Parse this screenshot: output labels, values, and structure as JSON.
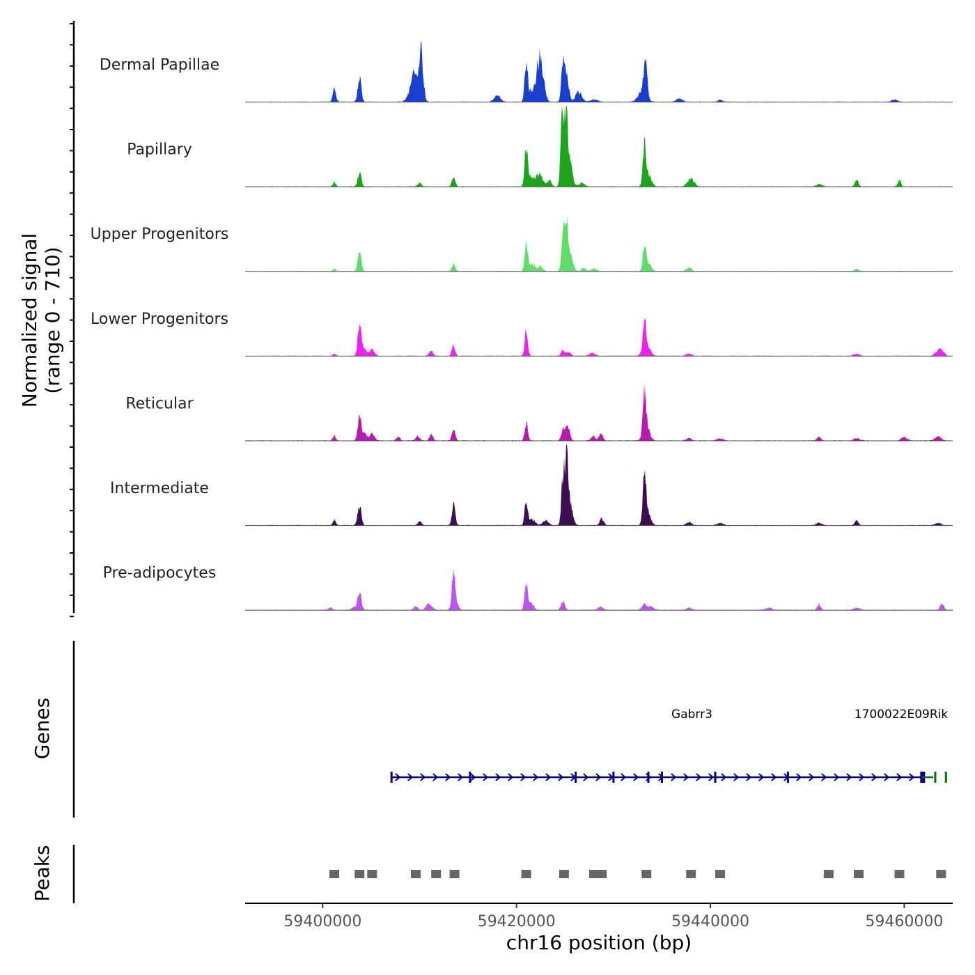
{
  "chart_data": {
    "type": "area",
    "title": "",
    "chromosome": "chr16",
    "xlabel": "chr16 position (bp)",
    "xlim": [
      59392000,
      59465000
    ],
    "xticks": [
      59400000,
      59420000,
      59440000,
      59460000
    ],
    "xtick_labels": [
      "59400000",
      "59420000",
      "59440000",
      "59460000"
    ],
    "ylabel": "Normalized signal",
    "ylabel_range": "(range 0 - 710)",
    "ylim": [
      0,
      710
    ],
    "series": [
      {
        "name": "Dermal Papillae",
        "color": "#1a3fcf",
        "peaks": [
          [
            59401200,
            110,
            160
          ],
          [
            59403800,
            200,
            180
          ],
          [
            59409600,
            200,
            350
          ],
          [
            59410200,
            380,
            200
          ],
          [
            59409200,
            80,
            400
          ],
          [
            59418000,
            60,
            300
          ],
          [
            59421000,
            330,
            160
          ],
          [
            59421600,
            100,
            300
          ],
          [
            59422300,
            310,
            250
          ],
          [
            59422700,
            200,
            250
          ],
          [
            59424800,
            370,
            160
          ],
          [
            59425200,
            250,
            200
          ],
          [
            59426400,
            100,
            300
          ],
          [
            59428000,
            20,
            400
          ],
          [
            59433300,
            340,
            160
          ],
          [
            59433000,
            100,
            400
          ],
          [
            59436800,
            30,
            300
          ],
          [
            59441000,
            20,
            200
          ],
          [
            59459000,
            20,
            300
          ]
        ]
      },
      {
        "name": "Papillary",
        "color": "#1ca51c",
        "peaks": [
          [
            59401200,
            40,
            150
          ],
          [
            59403800,
            120,
            180
          ],
          [
            59410000,
            30,
            200
          ],
          [
            59413500,
            80,
            170
          ],
          [
            59421000,
            320,
            160
          ],
          [
            59421500,
            80,
            300
          ],
          [
            59422200,
            80,
            250
          ],
          [
            59422600,
            60,
            250
          ],
          [
            59423400,
            60,
            200
          ],
          [
            59424700,
            620,
            160
          ],
          [
            59425100,
            700,
            180
          ],
          [
            59425500,
            220,
            250
          ],
          [
            59426700,
            30,
            300
          ],
          [
            59433200,
            340,
            160
          ],
          [
            59433600,
            100,
            300
          ],
          [
            59437800,
            50,
            250
          ],
          [
            59438200,
            40,
            250
          ],
          [
            59451200,
            20,
            300
          ],
          [
            59455100,
            60,
            170
          ],
          [
            59459500,
            60,
            160
          ]
        ]
      },
      {
        "name": "Upper Progenitors",
        "color": "#5fdc6a",
        "peaks": [
          [
            59401200,
            20,
            150
          ],
          [
            59403800,
            160,
            180
          ],
          [
            59413500,
            60,
            170
          ],
          [
            59421000,
            230,
            160
          ],
          [
            59421600,
            60,
            300
          ],
          [
            59422500,
            40,
            250
          ],
          [
            59424800,
            340,
            160
          ],
          [
            59425200,
            390,
            180
          ],
          [
            59425600,
            120,
            250
          ],
          [
            59426900,
            30,
            200
          ],
          [
            59428000,
            20,
            300
          ],
          [
            59433200,
            230,
            160
          ],
          [
            59433600,
            60,
            300
          ],
          [
            59437800,
            30,
            250
          ],
          [
            59455100,
            20,
            200
          ]
        ]
      },
      {
        "name": "Lower Progenitors",
        "color": "#ee22ee",
        "peaks": [
          [
            59401200,
            20,
            150
          ],
          [
            59403800,
            250,
            180
          ],
          [
            59404300,
            60,
            250
          ],
          [
            59405100,
            60,
            250
          ],
          [
            59411200,
            40,
            200
          ],
          [
            59413500,
            90,
            170
          ],
          [
            59421000,
            210,
            160
          ],
          [
            59424800,
            50,
            200
          ],
          [
            59425400,
            40,
            200
          ],
          [
            59427800,
            30,
            250
          ],
          [
            59433200,
            230,
            160
          ],
          [
            59433400,
            100,
            350
          ],
          [
            59437800,
            20,
            250
          ],
          [
            59455100,
            20,
            300
          ],
          [
            59463500,
            40,
            300
          ],
          [
            59463900,
            40,
            250
          ]
        ]
      },
      {
        "name": "Reticular",
        "color": "#b81aaf",
        "peaks": [
          [
            59401200,
            40,
            150
          ],
          [
            59403800,
            190,
            180
          ],
          [
            59404300,
            60,
            250
          ],
          [
            59405100,
            60,
            250
          ],
          [
            59407800,
            30,
            200
          ],
          [
            59409800,
            40,
            200
          ],
          [
            59411200,
            60,
            170
          ],
          [
            59413500,
            100,
            170
          ],
          [
            59421000,
            150,
            160
          ],
          [
            59424800,
            100,
            180
          ],
          [
            59425300,
            150,
            180
          ],
          [
            59427900,
            40,
            200
          ],
          [
            59428700,
            60,
            200
          ],
          [
            59433200,
            330,
            160
          ],
          [
            59433400,
            140,
            300
          ],
          [
            59437800,
            20,
            250
          ],
          [
            59441000,
            20,
            300
          ],
          [
            59451200,
            30,
            200
          ],
          [
            59455100,
            20,
            300
          ],
          [
            59460000,
            30,
            300
          ],
          [
            59463500,
            40,
            300
          ]
        ]
      },
      {
        "name": "Intermediate",
        "color": "#3e0e52",
        "peaks": [
          [
            59401200,
            50,
            150
          ],
          [
            59403800,
            180,
            180
          ],
          [
            59410000,
            30,
            200
          ],
          [
            59413500,
            180,
            170
          ],
          [
            59421000,
            200,
            160
          ],
          [
            59421600,
            50,
            300
          ],
          [
            59423000,
            40,
            300
          ],
          [
            59424800,
            440,
            160
          ],
          [
            59425200,
            590,
            180
          ],
          [
            59425600,
            140,
            250
          ],
          [
            59428800,
            60,
            200
          ],
          [
            59433200,
            440,
            160
          ],
          [
            59433500,
            120,
            300
          ],
          [
            59437800,
            30,
            250
          ],
          [
            59441000,
            20,
            300
          ],
          [
            59451200,
            20,
            300
          ],
          [
            59455100,
            40,
            170
          ],
          [
            59463500,
            20,
            300
          ]
        ]
      },
      {
        "name": "Pre-adipocytes",
        "color": "#bb55ee",
        "peaks": [
          [
            59400800,
            20,
            200
          ],
          [
            59403800,
            170,
            180
          ],
          [
            59403200,
            30,
            200
          ],
          [
            59409600,
            30,
            200
          ],
          [
            59410800,
            50,
            200
          ],
          [
            59411200,
            30,
            200
          ],
          [
            59413500,
            320,
            160
          ],
          [
            59413700,
            80,
            250
          ],
          [
            59421000,
            240,
            160
          ],
          [
            59421500,
            60,
            250
          ],
          [
            59424800,
            80,
            200
          ],
          [
            59428700,
            30,
            250
          ],
          [
            59433200,
            50,
            250
          ],
          [
            59433900,
            30,
            250
          ],
          [
            59437800,
            20,
            250
          ],
          [
            59446000,
            20,
            300
          ],
          [
            59451200,
            50,
            170
          ],
          [
            59463900,
            60,
            180
          ],
          [
            59455100,
            20,
            300
          ]
        ]
      }
    ],
    "genes": [
      {
        "name": "Gabrr3",
        "strand": "+",
        "start": 59407000,
        "end": 59462000,
        "color": "#000080",
        "exons": [
          59407100,
          59415200,
          59426100,
          59430000,
          59433600,
          59435000,
          59440500,
          59448000,
          59461900
        ]
      },
      {
        "name": "1700022E09Rik",
        "strand": "-",
        "start": 59463000,
        "end": 59467000,
        "color": "#007000",
        "exons": [
          59463200,
          59464300
        ]
      }
    ],
    "peaks_track": {
      "label": "Peaks",
      "color": "#666666",
      "regions": [
        59401200,
        59403800,
        59405100,
        59409600,
        59411700,
        59413600,
        59421000,
        59424900,
        59428000,
        59428800,
        59433400,
        59438000,
        59441000,
        59452200,
        59455300,
        59459500,
        59463800
      ]
    },
    "genes_track_label": "Genes"
  }
}
